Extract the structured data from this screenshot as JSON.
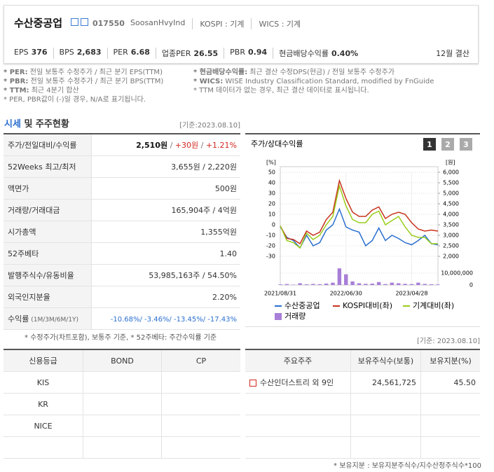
{
  "header": {
    "name": "수산중공업",
    "code": "017550",
    "subinfo": [
      "SoosanHvyInd",
      "KOSPI : 기계",
      "WICS : 기계"
    ],
    "stats": [
      {
        "label": "EPS",
        "value": "376"
      },
      {
        "label": "BPS",
        "value": "2,683"
      },
      {
        "label": "PER",
        "value": "6.68"
      },
      {
        "label": "업종PER",
        "value": "26.55"
      },
      {
        "label": "PBR",
        "value": "0.94"
      },
      {
        "label": "현금배당수익률",
        "value": "0.40%"
      }
    ],
    "settlement": "12월 결산"
  },
  "notes": {
    "left": [
      {
        "key": "* PER:",
        "text": " 전일 보통주 수정주가 / 최근 분기 EPS(TTM)"
      },
      {
        "key": "* PBR:",
        "text": " 전일 보통주 수정주가 / 최근 분기 BPS(TTM)"
      },
      {
        "key": "* TTM:",
        "text": " 최근 4분기 합산"
      },
      {
        "key": "",
        "text": "* PER, PBR값이 (-)일 경우, N/A로 표기됩니다."
      }
    ],
    "right": [
      {
        "key": "* 현금배당수익률:",
        "text": " 최근 결산 수정DPS(현금) / 전일 보통주 수정주가"
      },
      {
        "key": "* WICS:",
        "text": " WISE Industry Classification Standard, modified by FnGuide"
      },
      {
        "key": "",
        "text": "* TTM 데이터가 없는 경우, 최근 결산 데이터로 표시됩니다."
      }
    ]
  },
  "market": {
    "title_a": "시세",
    "title_b": " 및 주주현황",
    "date": "[기준:2023.08.10]",
    "first_row": {
      "label": "주가/전일대비/수익률",
      "parts": [
        "2,510원",
        " / ",
        "+30원",
        " / ",
        "+1.21%"
      ]
    },
    "rows": [
      {
        "label": "52Weeks 최고/최저",
        "value": "3,655원 / 2,220원"
      },
      {
        "label": "액면가",
        "value": "500원"
      },
      {
        "label": "거래량/거래대금",
        "value": "165,904주 / 4억원"
      },
      {
        "label": "시가총액",
        "value": "1,355억원"
      },
      {
        "label": "52주베타",
        "value": "1.40"
      },
      {
        "label": "발행주식수/유동비율",
        "value": "53,985,163주 / 54.50%"
      },
      {
        "label": "외국인지분율",
        "value": "2.20%"
      }
    ],
    "last_row": {
      "label": "수익률",
      "label_small": " (1M/3M/6M/1Y)",
      "value": "-10.68%/ -3.46%/ -13.45%/ -17.43%"
    },
    "note": "* 수정주가(차트포함), 보통주 기준, * 52주베타: 주간수익률 기준"
  },
  "chart": {
    "type": "line",
    "title": "주가/상대수익률",
    "buttons": [
      "1",
      "2",
      "3"
    ],
    "y_unit": "[%]",
    "y2_unit": "[원]",
    "ylim": [
      -30,
      50
    ],
    "yticks": [
      50,
      40,
      30,
      20,
      10,
      0,
      -10,
      -20,
      -30
    ],
    "y2lim": [
      2000,
      6000
    ],
    "y2ticks": [
      {
        "value": 6000,
        "label": "6,000"
      },
      {
        "value": 5500,
        "label": "5,500"
      },
      {
        "value": 5000,
        "label": "5,000"
      },
      {
        "value": 4500,
        "label": "4,500"
      },
      {
        "value": 4000,
        "label": "4,000"
      },
      {
        "value": 3500,
        "label": "3,500"
      },
      {
        "value": 3000,
        "label": "3,000"
      },
      {
        "value": 2500,
        "label": "2,500"
      },
      {
        "value": 2000,
        "label": "2,000"
      }
    ],
    "vlim": [
      0,
      10000000
    ],
    "vticks": [
      {
        "value": 10000000,
        "label": "10,000,000"
      },
      0
    ],
    "xlim": [
      0,
      24
    ],
    "xticks": [
      {
        "value": 0,
        "label": "2021/08/31"
      },
      {
        "value": 10,
        "label": "2022/06/30"
      },
      {
        "value": 20,
        "label": "2023/04/28"
      }
    ],
    "series": [
      {
        "name": "수산중공업",
        "color": "#2b6fd0",
        "axis": "y2",
        "values": [
          3400,
          2900,
          2750,
          2400,
          3000,
          2500,
          2650,
          3250,
          3500,
          4250,
          3400,
          3250,
          3150,
          2500,
          2750,
          3350,
          2750,
          3000,
          2850,
          2650,
          2550,
          2750,
          3000,
          2600,
          2550
        ]
      },
      {
        "name": "KOSPI대비(좌)",
        "color": "#c8331c",
        "values": [
          -1,
          -13,
          -14,
          -18,
          -6,
          -10,
          -7,
          5,
          12,
          42,
          25,
          12,
          8,
          8,
          14,
          17,
          6,
          10,
          12,
          10,
          2,
          -4,
          -6,
          -5,
          -6
        ]
      },
      {
        "name": "기계대비(좌)",
        "color": "#9acd1a",
        "values": [
          -1,
          -15,
          -17,
          -22,
          -8,
          -14,
          -10,
          0,
          8,
          37,
          18,
          5,
          2,
          2,
          10,
          13,
          0,
          4,
          8,
          -2,
          -10,
          -12,
          -12,
          -18,
          -18
        ]
      }
    ],
    "volume": {
      "name": "거래량",
      "color": "#a87fd8",
      "values": [
        500000,
        800000,
        300000,
        1500000,
        600000,
        900000,
        700000,
        1200000,
        2000000,
        14000000,
        9000000,
        3000000,
        1500000,
        1000000,
        1200000,
        2500000,
        800000,
        2000000,
        1500000,
        1000000,
        800000,
        2000000,
        900000,
        600000,
        500000
      ]
    }
  },
  "bottom": {
    "date": "[기준: 2023.08.10]",
    "credit": {
      "headers": [
        "신용등급",
        "BOND",
        "CP"
      ],
      "rows": [
        "KIS",
        "KR",
        "NICE"
      ]
    },
    "holders": {
      "headers": [
        "주요주주",
        "보유주식수(보통)",
        "보유지분(%)"
      ],
      "rows": [
        [
          "수산인더스트리 외 9인",
          "24,561,725",
          "45.50"
        ]
      ]
    },
    "note": "* 보유지분 : 보유지분주식수/지수산정주식수*100"
  }
}
